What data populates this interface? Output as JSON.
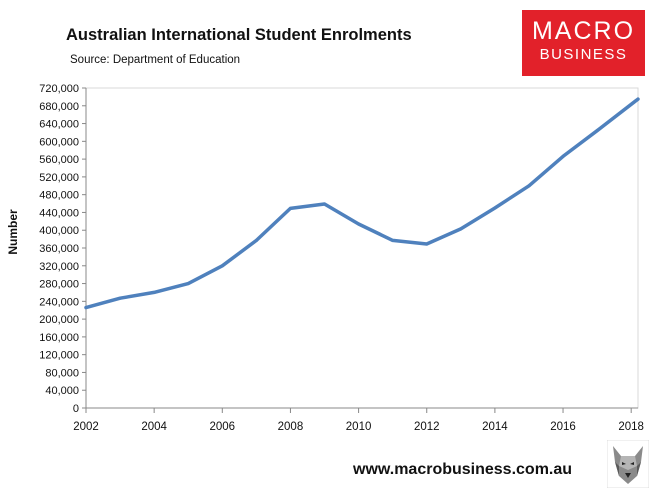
{
  "header": {
    "title": "Australian International Student Enrolments",
    "subtitle": "Source: Department of Education"
  },
  "logo": {
    "line1": "MACRO",
    "line2": "BUSINESS",
    "color": "#e2212a"
  },
  "footer": {
    "url": "www.macrobusiness.com.au",
    "emblem": "wolf-logo-icon"
  },
  "chart_data": {
    "type": "line",
    "ylabel": "Number",
    "xlabel": "",
    "ylim": [
      0,
      720000
    ],
    "yticks": [
      0,
      40000,
      80000,
      120000,
      160000,
      200000,
      240000,
      280000,
      320000,
      360000,
      400000,
      440000,
      480000,
      520000,
      560000,
      600000,
      640000,
      680000,
      720000
    ],
    "ytick_labels": [
      "0",
      "40,000",
      "80,000",
      "120,000",
      "160,000",
      "200,000",
      "240,000",
      "280,000",
      "320,000",
      "360,000",
      "400,000",
      "440,000",
      "480,000",
      "520,000",
      "560,000",
      "600,000",
      "640,000",
      "680,000",
      "720,000"
    ],
    "xlim": [
      2002,
      2018.2
    ],
    "xticks": [
      2002,
      2004,
      2006,
      2008,
      2010,
      2012,
      2014,
      2016,
      2018
    ],
    "xtick_labels": [
      "2002",
      "2004",
      "2006",
      "2008",
      "2010",
      "2012",
      "2014",
      "2016",
      "2018"
    ],
    "grid": false,
    "legend": "none",
    "series": [
      {
        "color": "#4f81bd",
        "x": [
          2002,
          2003,
          2004,
          2005,
          2006,
          2007,
          2008,
          2009,
          2010,
          2011,
          2012,
          2013,
          2014,
          2015,
          2016,
          2017,
          2018.2
        ],
        "values": [
          226000,
          247000,
          260000,
          280000,
          320000,
          377000,
          449000,
          459000,
          414000,
          377000,
          369000,
          403000,
          450000,
          500000,
          566000,
          624000,
          695000
        ]
      }
    ]
  }
}
